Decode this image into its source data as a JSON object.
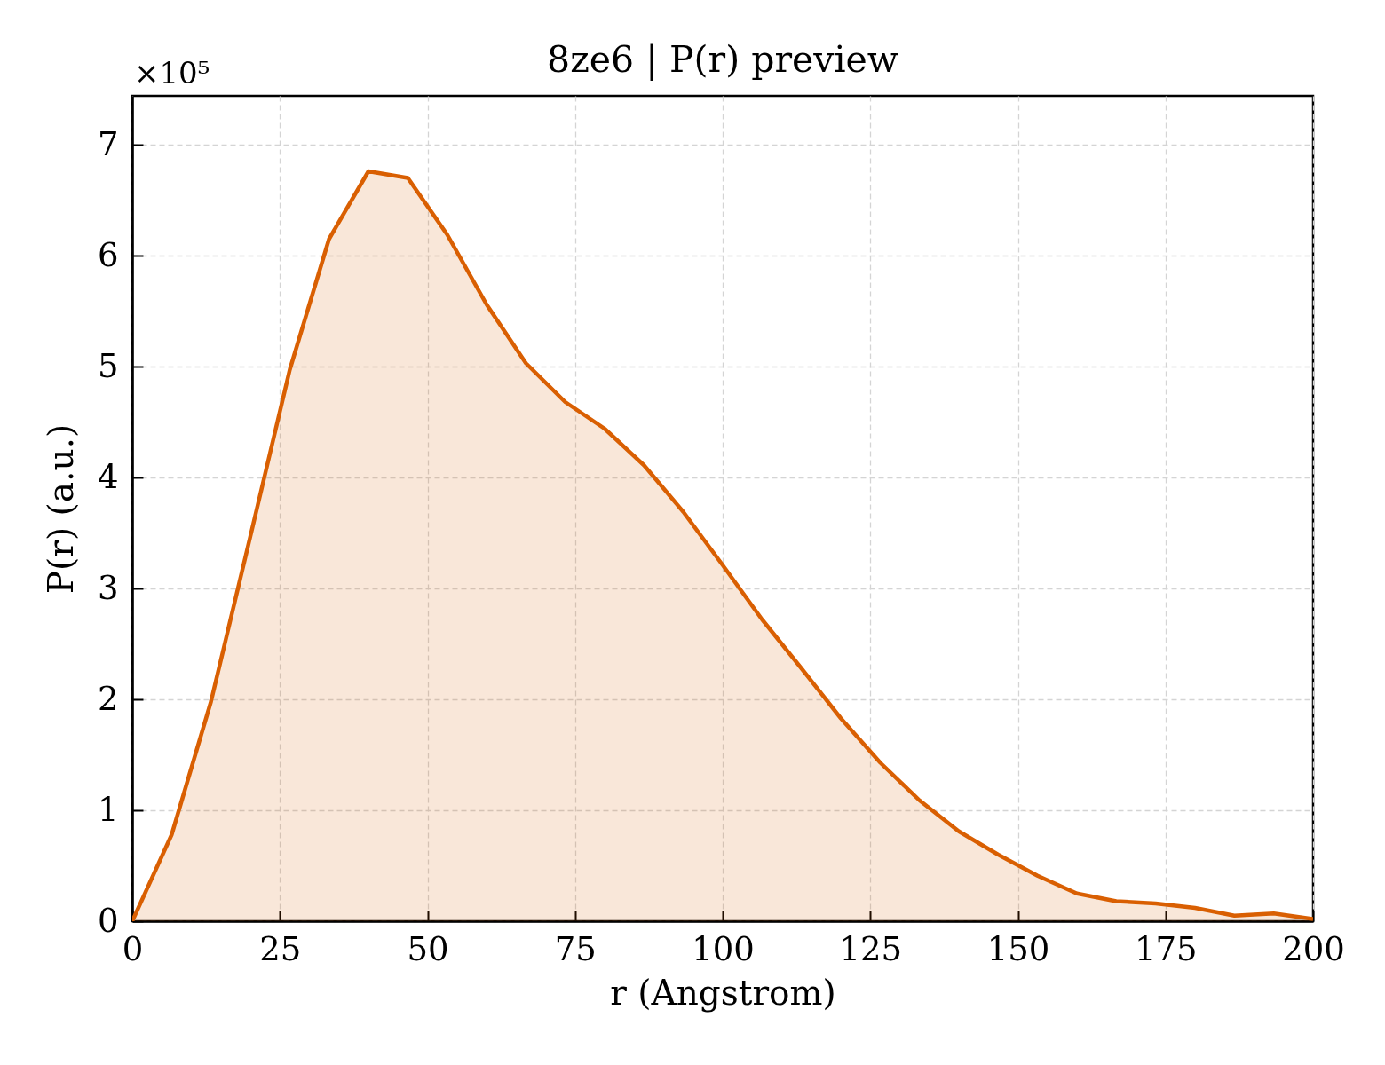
{
  "chart_data": {
    "type": "area",
    "title": "8ze6 | P(r) preview",
    "xlabel": "r (Angstrom)",
    "ylabel": "P(r) (a.u.)",
    "annotations": [
      "×10⁵"
    ],
    "x": [
      0,
      6.67,
      13.33,
      20,
      26.67,
      33.33,
      40,
      46.67,
      53.33,
      60,
      66.67,
      73.33,
      80,
      86.67,
      93.33,
      100,
      106.67,
      113.33,
      120,
      126.67,
      133.33,
      140,
      146.67,
      153.33,
      160,
      166.67,
      173.33,
      180,
      186.67,
      193.33,
      200
    ],
    "series": [
      {
        "color": "#d95f02",
        "values": [
          0,
          0.78,
          1.98,
          3.47,
          4.97,
          6.15,
          6.76,
          6.7,
          6.19,
          5.56,
          5.03,
          4.68,
          4.44,
          4.11,
          3.69,
          3.21,
          2.72,
          2.28,
          1.83,
          1.43,
          1.09,
          0.81,
          0.6,
          0.41,
          0.25,
          0.18,
          0.16,
          0.12,
          0.05,
          0.07,
          0.02
        ]
      }
    ],
    "xlim": [
      0,
      200
    ],
    "xticks": [
      0,
      25,
      50,
      75,
      100,
      125,
      150,
      175,
      200
    ],
    "ylim": [
      0,
      7.44
    ],
    "yticks": [
      0,
      1,
      2,
      3,
      4,
      5,
      6,
      7
    ],
    "grid": true
  }
}
